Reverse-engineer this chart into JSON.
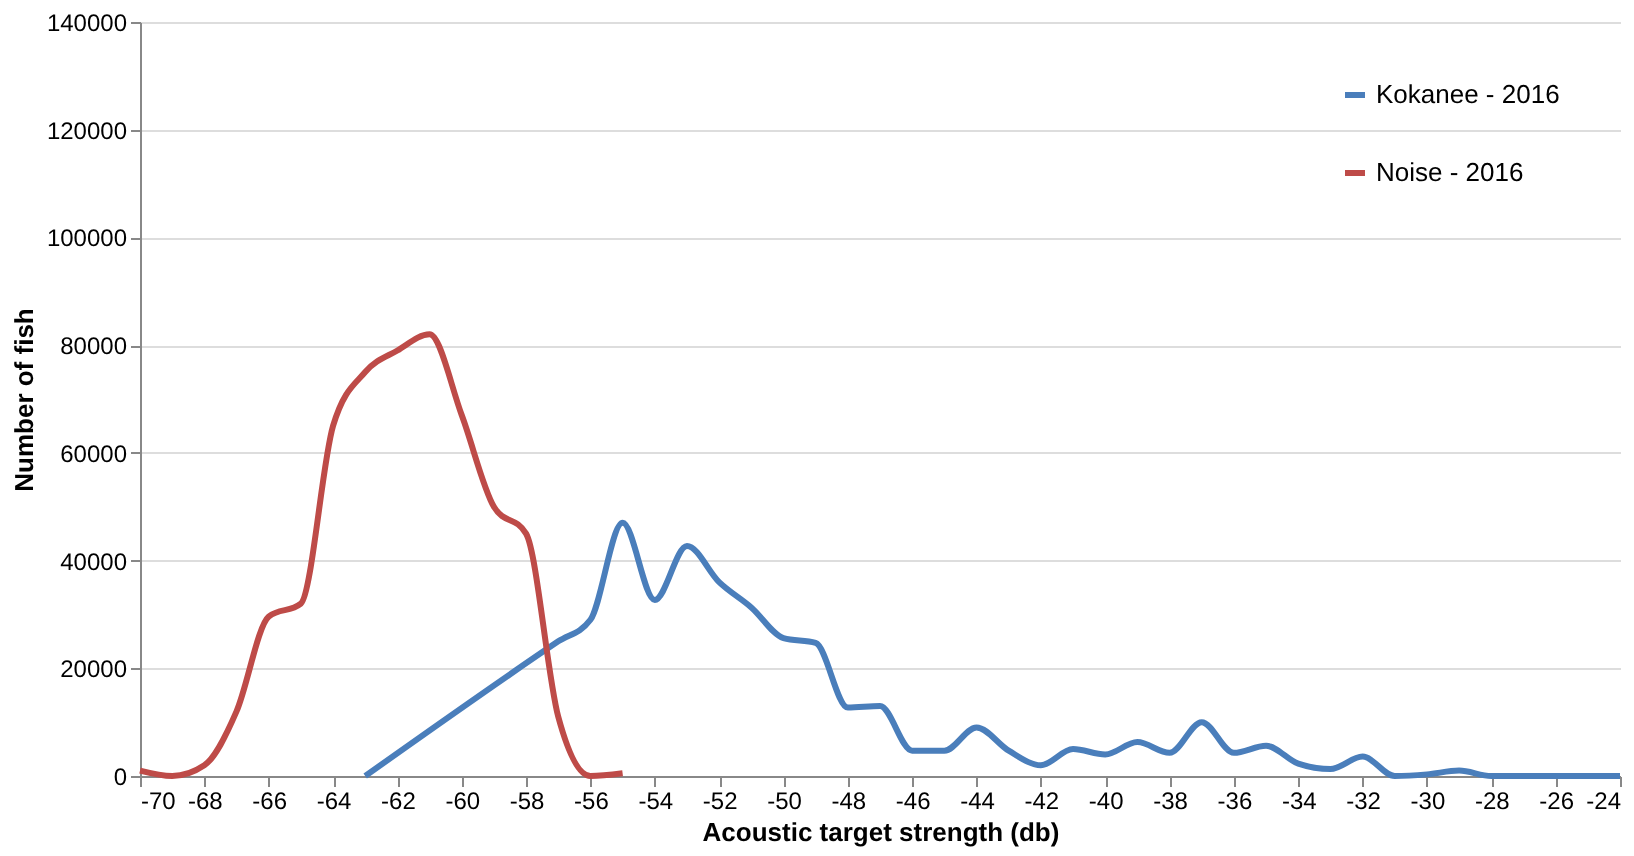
{
  "chart_data": {
    "type": "line",
    "xlabel": "Acoustic target strength (db)",
    "ylabel": "Number of fish",
    "xlim": [
      -70,
      -24
    ],
    "xticks": [
      -70,
      -68,
      -66,
      -64,
      -62,
      -60,
      -58,
      -56,
      -54,
      -52,
      -50,
      -48,
      -46,
      -44,
      -42,
      -40,
      -38,
      -36,
      -34,
      -32,
      -30,
      -28,
      -26,
      -24
    ],
    "ylim": [
      0,
      140000
    ],
    "yticks": [
      0,
      20000,
      40000,
      60000,
      80000,
      100000,
      120000,
      140000
    ],
    "grid": "y",
    "legend": "top right",
    "marker": "none",
    "line_style": "solid",
    "series": [
      {
        "name": "Kokanee - 2016",
        "color": "#4a7ebb",
        "x": [
          -63,
          -57,
          -56,
          -55,
          -54,
          -53,
          -52,
          -51,
          -50,
          -49,
          -48,
          -47,
          -46,
          -45,
          -44,
          -43,
          -42,
          -41,
          -40,
          -39,
          -38,
          -37,
          -36,
          -35,
          -34,
          -33,
          -32,
          -31,
          -30,
          -29,
          -28,
          -27,
          -26,
          -25,
          -24
        ],
        "values": [
          0,
          25000,
          29000,
          47000,
          32700,
          42700,
          36000,
          31300,
          25600,
          24700,
          12700,
          13000,
          4700,
          4700,
          9000,
          4700,
          2000,
          5000,
          4000,
          6300,
          4300,
          10000,
          4300,
          5600,
          2300,
          1300,
          3600,
          0,
          300,
          1000,
          0,
          0,
          0,
          0,
          0
        ]
      },
      {
        "name": "Noise - 2016",
        "color": "#be4b48",
        "x": [
          -70,
          -69,
          -68,
          -67,
          -66,
          -65,
          -64,
          -63,
          -62,
          -61,
          -60,
          -59,
          -58,
          -57,
          -56,
          -55
        ],
        "values": [
          1000,
          0,
          2000,
          12000,
          29600,
          32000,
          65000,
          75000,
          79000,
          82000,
          67000,
          50000,
          45000,
          11000,
          0,
          500
        ]
      }
    ]
  }
}
